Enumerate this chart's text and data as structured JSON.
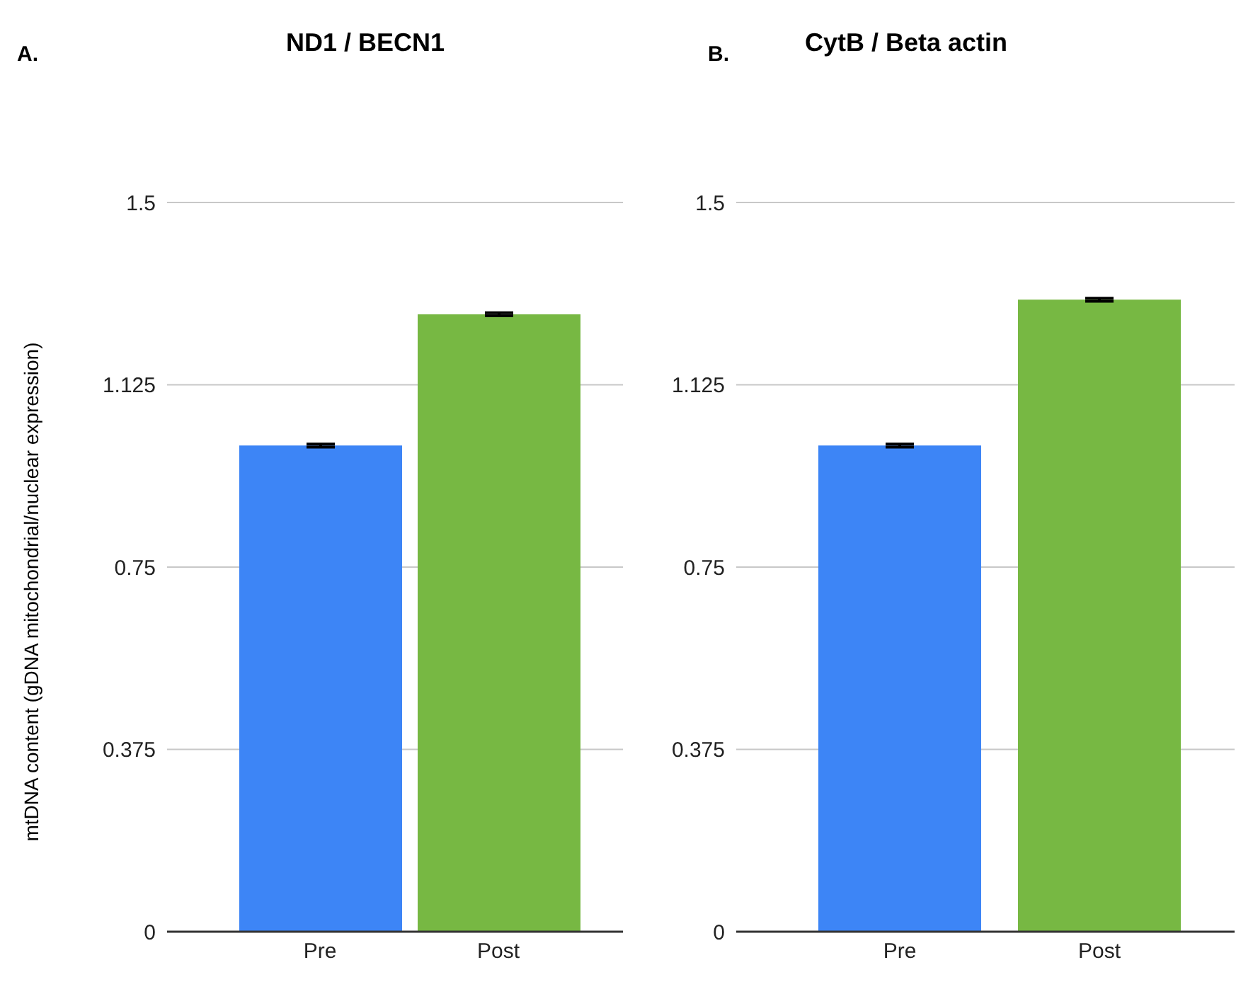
{
  "chart_data": [
    {
      "type": "bar",
      "title": "ND1 / BECN1",
      "annotations": [
        "A."
      ],
      "ylabel": "mtDNA content (gDNA mitochondrial/nuclear expression)",
      "categories": [
        "Pre",
        "Post"
      ],
      "values": [
        1.0,
        1.27
      ],
      "errors": [
        0.003,
        0.003
      ],
      "colors": [
        "#3d85f6",
        "#77b843"
      ],
      "ylim": [
        0,
        1.5
      ],
      "yticks": [
        0,
        0.375,
        0.75,
        1.125,
        1.5
      ],
      "grid": "y",
      "legend": false
    },
    {
      "type": "bar",
      "title": "CytB / Beta actin",
      "annotations": [
        "B."
      ],
      "categories": [
        "Pre",
        "Post"
      ],
      "values": [
        1.0,
        1.3
      ],
      "errors": [
        0.003,
        0.003
      ],
      "colors": [
        "#3d85f6",
        "#77b843"
      ],
      "ylim": [
        0,
        1.5
      ],
      "yticks": [
        0,
        0.375,
        0.75,
        1.125,
        1.5
      ],
      "grid": "y",
      "legend": false
    }
  ]
}
